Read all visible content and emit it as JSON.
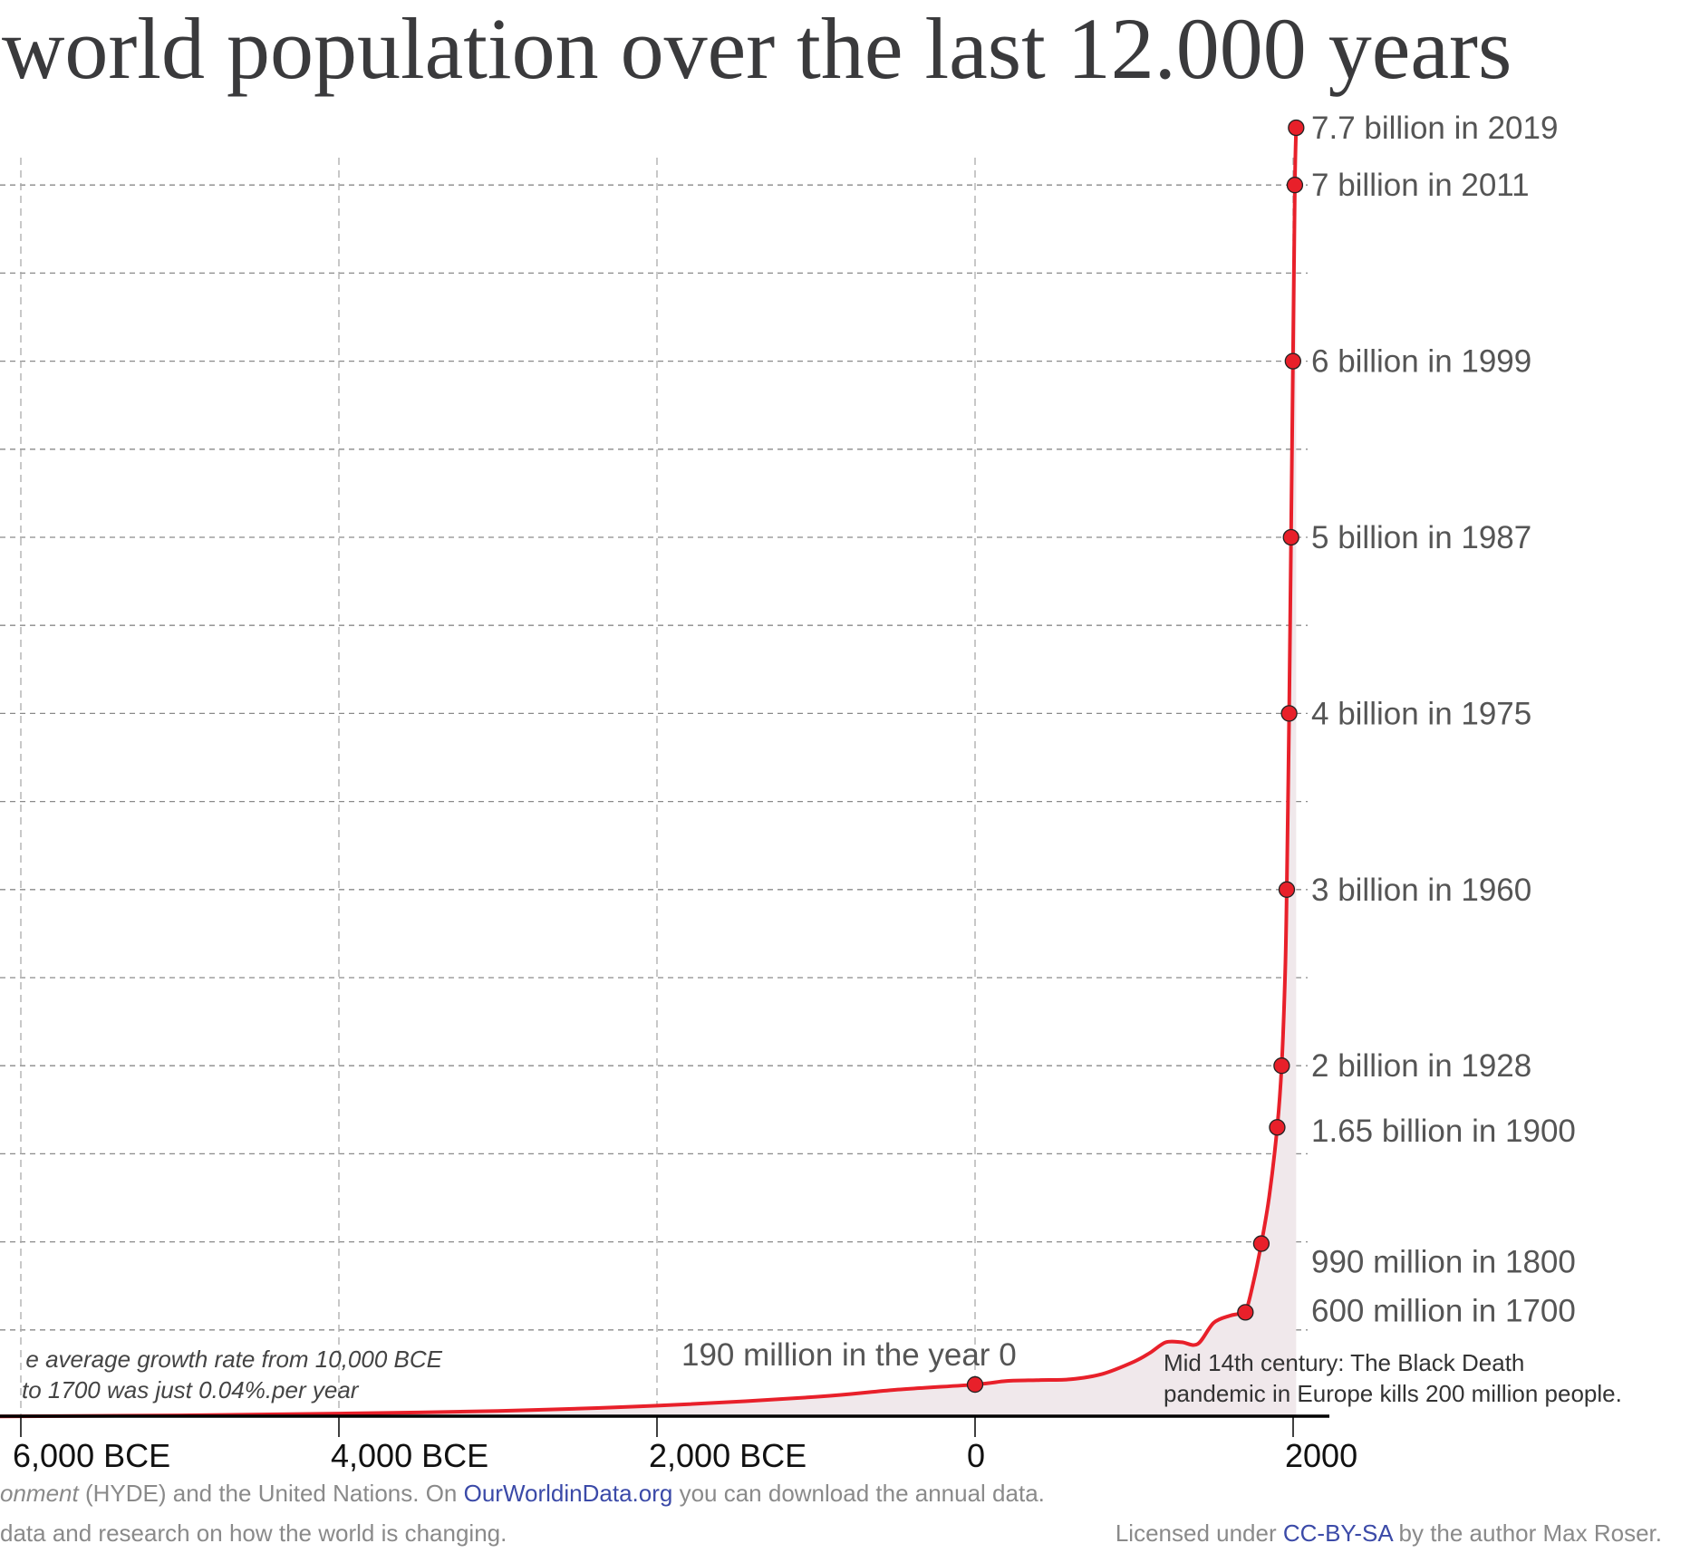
{
  "title": "world population over the last 12.000 years",
  "chart_data": {
    "type": "area",
    "title": "world population over the last 12.000 years",
    "xlabel": "",
    "ylabel": "",
    "x_unit": "year",
    "y_unit": "billion people",
    "xlim": [
      -6130,
      2185
    ],
    "ylim": [
      0,
      7.5
    ],
    "x_ticks": [
      -6000,
      -4000,
      -2000,
      0,
      2000
    ],
    "x_tick_labels": [
      "6,000 BCE",
      "4,000 BCE",
      "2,000 BCE",
      "0",
      "2000"
    ],
    "y_gridlines": [
      0.5,
      1,
      1.5,
      2,
      2.5,
      3,
      3.5,
      4,
      4.5,
      5,
      5.5,
      6,
      6.5,
      7
    ],
    "grid": true,
    "colors": {
      "line": "#e8202a",
      "fill": "#f0e8eb",
      "marker": "#e8202a",
      "grid": "#8a8a8a"
    },
    "series": [
      {
        "x": [
          -6200,
          -5000,
          -4000,
          -3000,
          -2000,
          -1000,
          -500,
          0,
          200,
          400,
          600,
          800,
          1000,
          1100,
          1200,
          1300,
          1400,
          1500,
          1600,
          1650,
          1700,
          1750,
          1800,
          1850,
          1900,
          1928,
          1950,
          1960,
          1975,
          1987,
          1999,
          2011,
          2019
        ],
        "y": [
          0.009,
          0.015,
          0.025,
          0.04,
          0.07,
          0.12,
          0.16,
          0.19,
          0.21,
          0.215,
          0.22,
          0.25,
          0.32,
          0.37,
          0.43,
          0.43,
          0.42,
          0.54,
          0.58,
          0.59,
          0.6,
          0.77,
          0.99,
          1.26,
          1.65,
          2.0,
          2.53,
          3.0,
          4.0,
          5.0,
          6.0,
          7.0,
          7.7
        ]
      }
    ],
    "highlights": [
      {
        "year": 2019,
        "value": 7.7,
        "label": "7.7 billion in 2019"
      },
      {
        "year": 2011,
        "value": 7.0,
        "label": "7 billion in 2011"
      },
      {
        "year": 1999,
        "value": 6.0,
        "label": "6 billion in 1999"
      },
      {
        "year": 1987,
        "value": 5.0,
        "label": "5 billion in 1987"
      },
      {
        "year": 1975,
        "value": 4.0,
        "label": "4 billion in 1975"
      },
      {
        "year": 1960,
        "value": 3.0,
        "label": "3 billion in 1960"
      },
      {
        "year": 1928,
        "value": 2.0,
        "label": "2 billion in 1928"
      },
      {
        "year": 1900,
        "value": 1.65,
        "label": "1.65 billion in 1900"
      },
      {
        "year": 1800,
        "value": 0.99,
        "label": "990 million in 1800"
      },
      {
        "year": 1700,
        "value": 0.6,
        "label": "600 million in 1700"
      },
      {
        "year": 0,
        "value": 0.19,
        "label": "190 million in the year 0"
      }
    ],
    "annotations": {
      "growth_line1": "e average growth rate from 10,000 BCE",
      "growth_line2": "to 1700 was just  0.04%.per year",
      "death_line1": "Mid 14th century: The Black Death",
      "death_line2": "pandemic in Europe kills 200 million people."
    }
  },
  "footer": {
    "line1_italic": "onment",
    "line1_a": " (HYDE) and the United Nations. On ",
    "line1_link": "OurWorldinData.org",
    "line1_b": " you can download the annual data.",
    "line2_left": "data and research on how the world is changing.",
    "license_prefix": "Licensed under ",
    "license_link": "CC-BY-SA",
    "license_suffix": " by the author Max Roser."
  }
}
